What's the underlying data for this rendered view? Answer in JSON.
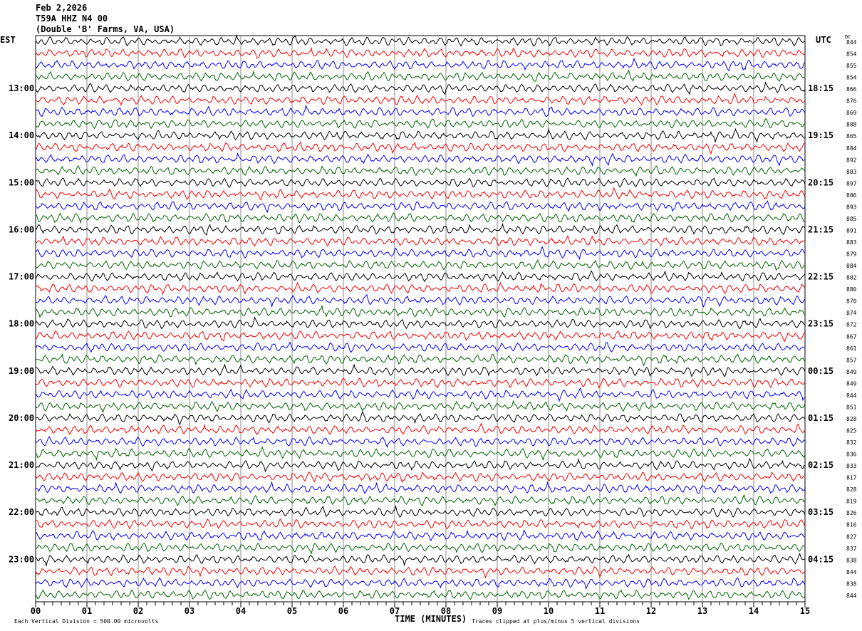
{
  "header": {
    "date": "Feb 2,2026",
    "station": "T59A HHZ N4 00",
    "location": "(Double 'B' Farms, VA, USA)"
  },
  "left_axis_label": "EST",
  "right_axis_label": "UTC",
  "dc_label": "DC",
  "footer": {
    "scale_note": "Each Vertical Division =  500.00 microvolts",
    "xlabel": "TIME (MINUTES)",
    "clip_note": "Traces clipped at plus/minus 5 vertical divisions"
  },
  "chart_data": {
    "type": "line",
    "subtype": "helicorder",
    "xlabel": "TIME (MINUTES)",
    "xlim": [
      0,
      15
    ],
    "x_ticks": [
      "00",
      "01",
      "02",
      "03",
      "04",
      "05",
      "06",
      "07",
      "08",
      "09",
      "10",
      "11",
      "12",
      "13",
      "14",
      "15"
    ],
    "grid": "vertical lines every minute",
    "trace_colors": [
      "#000000",
      "#ff0000",
      "#0000ff",
      "#006400"
    ],
    "left_hour_labels": [
      "13:00",
      "14:00",
      "15:00",
      "16:00",
      "17:00",
      "18:00",
      "19:00",
      "20:00",
      "21:00",
      "22:00",
      "23:00"
    ],
    "right_hour_labels": [
      "18:15",
      "19:15",
      "20:15",
      "21:15",
      "22:15",
      "23:15",
      "00:15",
      "01:15",
      "02:15",
      "03:15",
      "04:15"
    ],
    "dc_values": [
      "844",
      "854",
      "855",
      "854",
      "866",
      "876",
      "869",
      "888",
      "865",
      "884",
      "892",
      "883",
      "897",
      "886",
      "893",
      "885",
      "891",
      "883",
      "879",
      "884",
      "882",
      "880",
      "870",
      "874",
      "872",
      "867",
      "861",
      "857",
      "849",
      "849",
      "844",
      "851",
      "828",
      "825",
      "832",
      "836",
      "833",
      "817",
      "828",
      "819",
      "826",
      "816",
      "827",
      "837",
      "838",
      "844",
      "838",
      "844"
    ]
  }
}
